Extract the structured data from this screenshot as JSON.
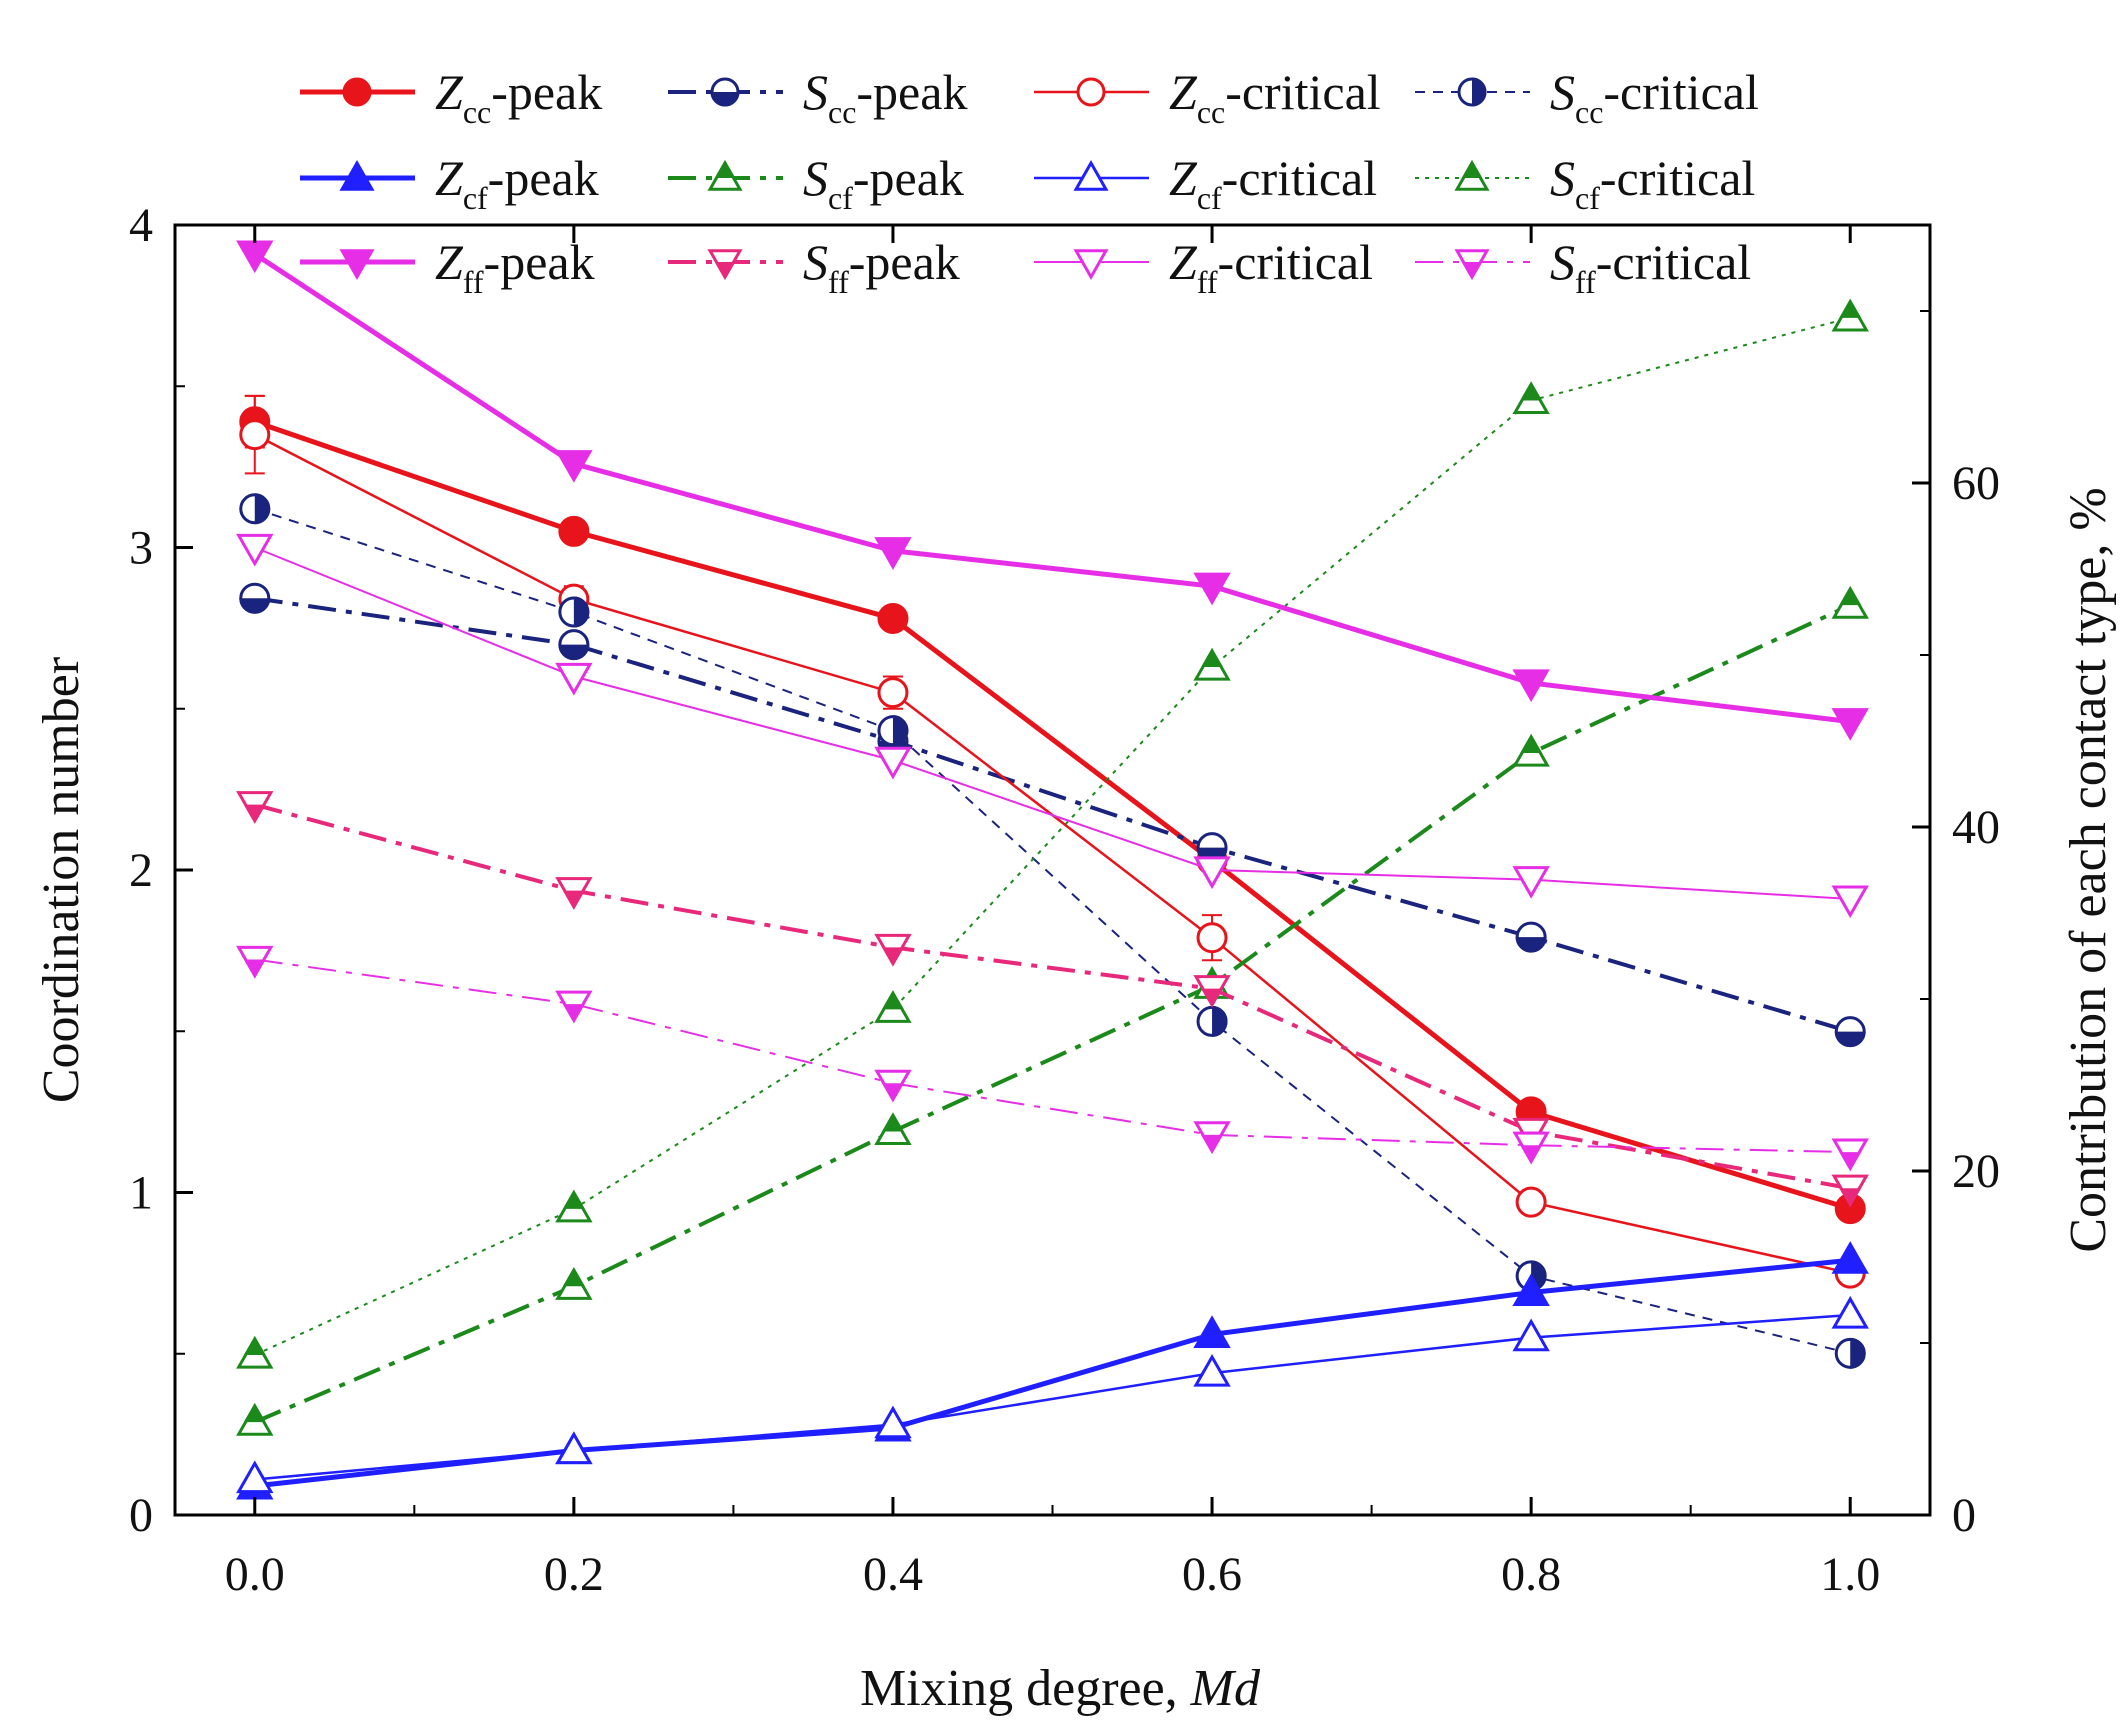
{
  "chart_data": {
    "type": "line",
    "xlabel": "Mixing degree, ",
    "xlabel_italic": "Md",
    "ylabel": "Coordination number",
    "ylabel_right": "Contribution of each contact type, %",
    "x": [
      0.0,
      0.2,
      0.4,
      0.6,
      0.8,
      1.0
    ],
    "x_tick_labels": [
      "0.0",
      "0.2",
      "0.4",
      "0.6",
      "0.8",
      "1.0"
    ],
    "xlim": [
      -0.05,
      1.05
    ],
    "ylim": [
      0,
      4
    ],
    "y_ticks": [
      0,
      1,
      2,
      3,
      4
    ],
    "y_tick_labels": [
      "0",
      "1",
      "2",
      "3",
      "4"
    ],
    "ylim_right": [
      0,
      75
    ],
    "y_ticks_right": [
      0,
      20,
      40,
      60
    ],
    "y_tick_labels_right": [
      "0",
      "20",
      "40",
      "60"
    ],
    "legend_position": "top",
    "series": [
      {
        "name": "Zcc-peak",
        "letter": "Z",
        "sub": "cc",
        "suffix": "-peak",
        "axis": "left",
        "color": "#e8141b",
        "dash": "solid",
        "width": 5,
        "marker": "circle",
        "fill": "full",
        "values": [
          3.39,
          3.05,
          2.78,
          2.03,
          1.25,
          0.95
        ],
        "err": [
          0.08,
          0,
          0,
          0,
          0,
          0
        ]
      },
      {
        "name": "Scc-peak",
        "letter": "S",
        "sub": "cc",
        "suffix": "-peak",
        "axis": "right",
        "color": "#1a237e",
        "dash": "dashdot",
        "width": 4,
        "marker": "circle",
        "fill": "bottom",
        "values": [
          53.3,
          50.6,
          45.0,
          38.8,
          33.6,
          28.1
        ]
      },
      {
        "name": "Zcc-critical",
        "letter": "Z",
        "sub": "cc",
        "suffix": "-critical",
        "axis": "left",
        "color": "#e8141b",
        "dash": "solid",
        "width": 2.5,
        "marker": "circle",
        "fill": "none",
        "values": [
          3.35,
          2.84,
          2.55,
          1.79,
          0.97,
          0.75
        ],
        "err": [
          0.12,
          0.04,
          0.05,
          0.07,
          0,
          0
        ]
      },
      {
        "name": "Scc-critical",
        "letter": "S",
        "sub": "cc",
        "suffix": "-critical",
        "axis": "right",
        "color": "#1a237e",
        "dash": "dash",
        "width": 2,
        "marker": "circle",
        "fill": "right",
        "values": [
          58.5,
          52.5,
          45.6,
          28.7,
          13.9,
          9.4
        ]
      },
      {
        "name": "Zcf-peak",
        "letter": "Z",
        "sub": "cf",
        "suffix": "-peak",
        "axis": "left",
        "color": "#1f1fff",
        "dash": "solid",
        "width": 5,
        "marker": "triangle",
        "fill": "full",
        "values": [
          0.09,
          0.2,
          0.27,
          0.56,
          0.69,
          0.79
        ]
      },
      {
        "name": "Scf-peak",
        "letter": "S",
        "sub": "cf",
        "suffix": "-peak",
        "axis": "right",
        "color": "#1b8a1b",
        "dash": "dashdot",
        "width": 4,
        "marker": "triangle",
        "fill": "top",
        "values": [
          5.4,
          13.3,
          22.3,
          30.8,
          44.3,
          52.9
        ]
      },
      {
        "name": "Zcf-critical",
        "letter": "Z",
        "sub": "cf",
        "suffix": "-critical",
        "axis": "left",
        "color": "#1f1fff",
        "dash": "solid",
        "width": 2.5,
        "marker": "triangle",
        "fill": "none",
        "values": [
          0.11,
          0.2,
          0.28,
          0.44,
          0.55,
          0.62
        ]
      },
      {
        "name": "Scf-critical",
        "letter": "S",
        "sub": "cf",
        "suffix": "-critical",
        "axis": "right",
        "color": "#1b8a1b",
        "dash": "dot",
        "width": 2,
        "marker": "triangle",
        "fill": "top",
        "values": [
          9.3,
          17.8,
          29.4,
          49.3,
          64.8,
          69.6
        ]
      },
      {
        "name": "Zff-peak",
        "letter": "Z",
        "sub": "ff",
        "suffix": "-peak",
        "axis": "left",
        "color": "#e62ee6",
        "dash": "solid",
        "width": 5,
        "marker": "triangle-down",
        "fill": "full",
        "values": [
          3.91,
          3.26,
          2.99,
          2.88,
          2.58,
          2.46
        ]
      },
      {
        "name": "Sff-peak",
        "letter": "S",
        "sub": "ff",
        "suffix": "-peak",
        "axis": "right",
        "color": "#e8287a",
        "dash": "dashdot",
        "width": 4,
        "marker": "triangle-down",
        "fill": "bottom",
        "values": [
          41.3,
          36.3,
          33.0,
          30.6,
          22.3,
          19.0
        ]
      },
      {
        "name": "Zff-critical",
        "letter": "Z",
        "sub": "ff",
        "suffix": "-critical",
        "axis": "left",
        "color": "#e62ee6",
        "dash": "solid",
        "width": 2,
        "marker": "triangle-down",
        "fill": "none",
        "values": [
          3.0,
          2.6,
          2.34,
          2.0,
          1.97,
          1.91
        ]
      },
      {
        "name": "Sff-critical",
        "letter": "S",
        "sub": "ff",
        "suffix": "-critical",
        "axis": "right",
        "color": "#e62ee6",
        "dash": "dashdot",
        "width": 2,
        "marker": "triangle-down",
        "fill": "bottom",
        "values": [
          32.3,
          29.7,
          25.1,
          22.1,
          21.5,
          21.1
        ]
      }
    ]
  }
}
